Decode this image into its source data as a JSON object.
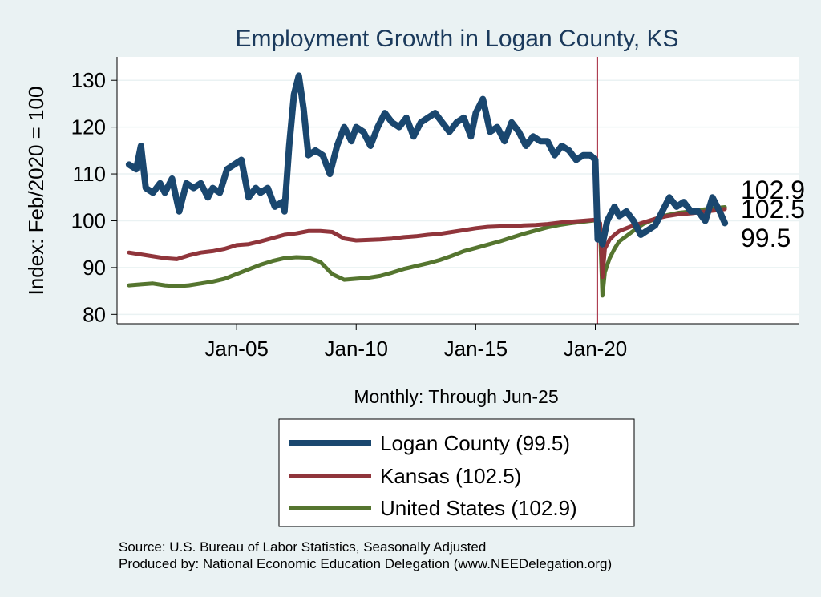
{
  "chart_data": {
    "type": "line",
    "title": "Employment Growth in Logan  County, KS",
    "xlabel": "Monthly: Through Jun-25",
    "ylabel": "Index: Feb/2020 = 100",
    "xlim": [
      2000.0,
      2028.5
    ],
    "ylim": [
      78,
      135
    ],
    "yticks": [
      80,
      90,
      100,
      110,
      120,
      130
    ],
    "xticks": [
      {
        "value": 2005.0,
        "label": "Jan-05"
      },
      {
        "value": 2010.0,
        "label": "Jan-10"
      },
      {
        "value": 2015.0,
        "label": "Jan-15"
      },
      {
        "value": 2020.0,
        "label": "Jan-20"
      }
    ],
    "reference_line": {
      "x": 2020.08,
      "color": "#a3243b"
    },
    "series": [
      {
        "name": "Logan  County",
        "legend_label": "Logan  County (99.5)",
        "end_label": "99.5",
        "color": "#1a476f",
        "width": 8,
        "x": [
          2000.5,
          2000.8,
          2001.0,
          2001.2,
          2001.5,
          2001.8,
          2002.0,
          2002.3,
          2002.6,
          2002.9,
          2003.2,
          2003.5,
          2003.8,
          2004.0,
          2004.3,
          2004.6,
          2004.9,
          2005.2,
          2005.5,
          2005.8,
          2006.0,
          2006.3,
          2006.6,
          2006.9,
          2007.0,
          2007.2,
          2007.4,
          2007.6,
          2007.8,
          2008.0,
          2008.3,
          2008.6,
          2008.9,
          2009.2,
          2009.5,
          2009.8,
          2010.0,
          2010.3,
          2010.6,
          2010.9,
          2011.2,
          2011.5,
          2011.8,
          2012.1,
          2012.4,
          2012.7,
          2013.0,
          2013.3,
          2013.6,
          2013.9,
          2014.2,
          2014.5,
          2014.8,
          2015.0,
          2015.3,
          2015.6,
          2015.9,
          2016.2,
          2016.5,
          2016.8,
          2017.1,
          2017.4,
          2017.7,
          2018.0,
          2018.3,
          2018.6,
          2018.9,
          2019.2,
          2019.5,
          2019.8,
          2020.0,
          2020.1,
          2020.2,
          2020.3,
          2020.5,
          2020.8,
          2021.0,
          2021.3,
          2021.6,
          2021.9,
          2022.2,
          2022.5,
          2022.8,
          2023.1,
          2023.4,
          2023.7,
          2024.0,
          2024.3,
          2024.6,
          2024.9,
          2025.2,
          2025.42
        ],
        "y": [
          112,
          111,
          116,
          107,
          106,
          108,
          106,
          109,
          102,
          108,
          107,
          108,
          105,
          107,
          106,
          111,
          112,
          113,
          105,
          107,
          106,
          107,
          103,
          104,
          102,
          116,
          127,
          131,
          124,
          114,
          115,
          114,
          110,
          116,
          120,
          117,
          120,
          119,
          116,
          120,
          123,
          121,
          120,
          122,
          118,
          121,
          122,
          123,
          121,
          119,
          121,
          122,
          118,
          123,
          126,
          119,
          120,
          117,
          121,
          119,
          116,
          118,
          117,
          117,
          114,
          116,
          115,
          113,
          114,
          114,
          113,
          96,
          97,
          95,
          100,
          103,
          101,
          102,
          100,
          97,
          98,
          99,
          102,
          105,
          103,
          104,
          102,
          102,
          100,
          105,
          102,
          99.5
        ]
      },
      {
        "name": "Kansas",
        "legend_label": "Kansas (102.5)",
        "end_label": "102.5",
        "color": "#90353b",
        "width": 5,
        "x": [
          2000.5,
          2001.0,
          2001.5,
          2002.0,
          2002.5,
          2003.0,
          2003.5,
          2004.0,
          2004.5,
          2005.0,
          2005.5,
          2006.0,
          2006.5,
          2007.0,
          2007.5,
          2008.0,
          2008.5,
          2009.0,
          2009.5,
          2010.0,
          2010.5,
          2011.0,
          2011.5,
          2012.0,
          2012.5,
          2013.0,
          2013.5,
          2014.0,
          2014.5,
          2015.0,
          2015.5,
          2016.0,
          2016.5,
          2017.0,
          2017.5,
          2018.0,
          2018.5,
          2019.0,
          2019.5,
          2020.0,
          2020.1,
          2020.2,
          2020.3,
          2020.4,
          2020.6,
          2020.8,
          2021.0,
          2021.5,
          2022.0,
          2022.5,
          2023.0,
          2023.5,
          2024.0,
          2024.5,
          2025.0,
          2025.42
        ],
        "y": [
          93.2,
          92.8,
          92.4,
          92.0,
          91.8,
          92.6,
          93.2,
          93.5,
          94.0,
          94.8,
          95.0,
          95.6,
          96.3,
          97.0,
          97.3,
          97.8,
          97.8,
          97.6,
          96.2,
          95.8,
          95.9,
          96.0,
          96.2,
          96.5,
          96.7,
          97.0,
          97.2,
          97.6,
          98.0,
          98.4,
          98.7,
          98.8,
          98.8,
          99.0,
          99.1,
          99.3,
          99.6,
          99.8,
          100.0,
          100.2,
          100.0,
          99.5,
          88.0,
          94.0,
          96.0,
          97.0,
          97.8,
          98.8,
          99.6,
          100.4,
          101.0,
          101.4,
          101.6,
          101.9,
          102.2,
          102.5
        ]
      },
      {
        "name": "United States",
        "legend_label": "United States (102.9)",
        "end_label": "102.9",
        "color": "#55752f",
        "width": 5,
        "x": [
          2000.5,
          2001.0,
          2001.5,
          2002.0,
          2002.5,
          2003.0,
          2003.5,
          2004.0,
          2004.5,
          2005.0,
          2005.5,
          2006.0,
          2006.5,
          2007.0,
          2007.5,
          2008.0,
          2008.5,
          2009.0,
          2009.5,
          2010.0,
          2010.5,
          2011.0,
          2011.5,
          2012.0,
          2012.5,
          2013.0,
          2013.5,
          2014.0,
          2014.5,
          2015.0,
          2015.5,
          2016.0,
          2016.5,
          2017.0,
          2017.5,
          2018.0,
          2018.5,
          2019.0,
          2019.5,
          2020.0,
          2020.1,
          2020.2,
          2020.3,
          2020.4,
          2020.6,
          2020.8,
          2021.0,
          2021.5,
          2022.0,
          2022.5,
          2023.0,
          2023.5,
          2024.0,
          2024.5,
          2025.0,
          2025.42
        ],
        "y": [
          86.2,
          86.4,
          86.6,
          86.2,
          86.0,
          86.2,
          86.6,
          87.0,
          87.6,
          88.6,
          89.6,
          90.6,
          91.4,
          92.0,
          92.2,
          92.1,
          91.2,
          88.6,
          87.4,
          87.6,
          87.8,
          88.2,
          88.9,
          89.7,
          90.3,
          90.9,
          91.6,
          92.5,
          93.5,
          94.2,
          94.9,
          95.6,
          96.4,
          97.2,
          97.9,
          98.6,
          99.1,
          99.5,
          99.8,
          100.1,
          99.5,
          98.0,
          84.0,
          89.0,
          92.0,
          94.0,
          95.6,
          97.5,
          99.3,
          100.4,
          101.2,
          101.7,
          102.0,
          102.4,
          102.7,
          102.9
        ]
      }
    ],
    "legend": {
      "position": "bottom"
    }
  },
  "footer": {
    "source": "Source: U.S. Bureau of Labor Statistics, Seasonally Adjusted",
    "produced_by": "Produced by: National Economic Education Delegation (www.NEEDelegation.org)"
  }
}
